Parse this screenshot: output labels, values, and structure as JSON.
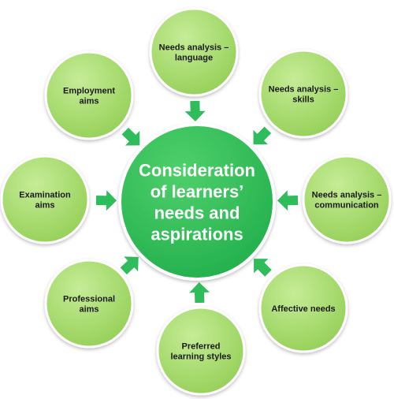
{
  "diagram": {
    "center": {
      "lines": [
        "Consideration",
        "of learners’",
        "needs and",
        "aspirations"
      ]
    },
    "satellites": [
      {
        "id": "needs-analysis-language",
        "lines": [
          "Needs analysis –",
          "language"
        ]
      },
      {
        "id": "needs-analysis-skills",
        "lines": [
          "Needs analysis –",
          "skills"
        ]
      },
      {
        "id": "needs-analysis-communication",
        "lines": [
          "Needs analysis –",
          "communication"
        ]
      },
      {
        "id": "affective-needs",
        "lines": [
          "Affective needs"
        ]
      },
      {
        "id": "preferred-learning-styles",
        "lines": [
          "Preferred",
          "learning styles"
        ]
      },
      {
        "id": "professional-aims",
        "lines": [
          "Professional",
          "aims"
        ]
      },
      {
        "id": "examination-aims",
        "lines": [
          "Examination",
          "aims"
        ]
      },
      {
        "id": "employment-aims",
        "lines": [
          "Employment",
          "aims"
        ]
      }
    ],
    "colors": {
      "satellite_fill": "#93cf55",
      "satellite_fill_light": "#c6ec97",
      "satellite_stroke": "#ffffff",
      "center_fill": "#1fae4a",
      "center_fill_light": "#4fd06c",
      "arrow_fill": "#2ebd5a",
      "text_dark": "#1a1a1a",
      "text_light": "#ffffff"
    }
  }
}
